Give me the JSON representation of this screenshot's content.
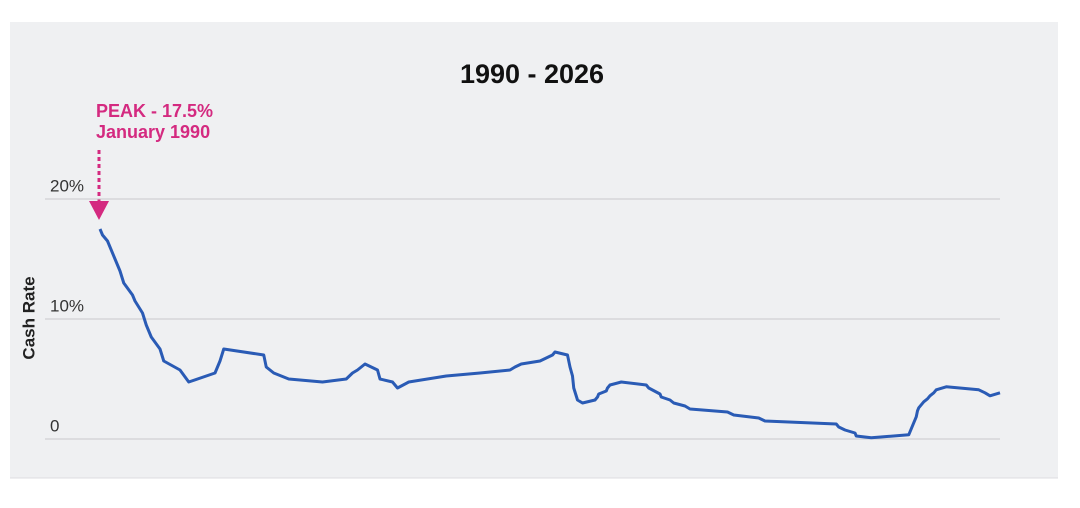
{
  "chart_data": {
    "type": "line",
    "title": "1990 - 2026",
    "y_label": "Cash Rate",
    "annotations": [
      "PEAK - 17.5%",
      "January 1990"
    ],
    "color": "#2a5bb5",
    "annotation_color": "#d42a80",
    "grid": true,
    "xlim": [
      1990,
      2026
    ],
    "ylim": [
      0,
      28
    ],
    "yticks": [
      0,
      {
        "value": 10,
        "label": "10%"
      },
      {
        "value": 20,
        "label": "20%"
      }
    ],
    "x": [
      1990.0,
      1990.1,
      1990.3,
      1990.6,
      1990.8,
      1990.95,
      1991.3,
      1991.4,
      1991.7,
      1991.85,
      1992.05,
      1992.4,
      1992.55,
      1993.2,
      1993.55,
      1994.6,
      1994.8,
      1994.95,
      1996.55,
      1996.65,
      1996.95,
      1997.55,
      1998.9,
      1999.85,
      2000.1,
      2000.3,
      2000.6,
      2001.1,
      2001.2,
      2001.7,
      2001.9,
      2002.35,
      2003.85,
      2005.2,
      2006.4,
      2006.6,
      2006.85,
      2007.6,
      2007.85,
      2008.1,
      2008.2,
      2008.7,
      2008.8,
      2008.9,
      2008.95,
      2009.1,
      2009.3,
      2009.8,
      2009.9,
      2009.95,
      2010.25,
      2010.3,
      2010.4,
      2010.85,
      2011.85,
      2011.95,
      2012.4,
      2012.45,
      2012.8,
      2012.95,
      2013.4,
      2013.6,
      2015.1,
      2015.35,
      2016.35,
      2016.6,
      2019.45,
      2019.55,
      2019.8,
      2020.2,
      2020.25,
      2020.85,
      2022.35,
      2022.45,
      2022.55,
      2022.65,
      2022.7,
      2022.75,
      2022.85,
      2022.95,
      2023.1,
      2023.2,
      2023.35,
      2023.45,
      2023.85,
      2025.15,
      2025.4,
      2025.6,
      2026.0
    ],
    "values": [
      17.5,
      17.0,
      16.5,
      15.0,
      14.0,
      13.0,
      12.0,
      11.5,
      10.5,
      9.5,
      8.5,
      7.5,
      6.5,
      5.75,
      4.75,
      5.5,
      6.5,
      7.5,
      7.0,
      6.0,
      5.5,
      5.0,
      4.75,
      5.0,
      5.5,
      5.75,
      6.25,
      5.75,
      5.0,
      4.75,
      4.25,
      4.75,
      5.25,
      5.5,
      5.75,
      6.0,
      6.25,
      6.5,
      6.75,
      7.0,
      7.25,
      7.0,
      6.0,
      5.25,
      4.25,
      3.25,
      3.0,
      3.25,
      3.5,
      3.75,
      4.0,
      4.25,
      4.5,
      4.75,
      4.5,
      4.25,
      3.75,
      3.5,
      3.25,
      3.0,
      2.75,
      2.5,
      2.25,
      2.0,
      1.75,
      1.5,
      1.25,
      1.0,
      0.75,
      0.5,
      0.25,
      0.1,
      0.35,
      0.85,
      1.35,
      1.85,
      2.35,
      2.6,
      2.85,
      3.1,
      3.35,
      3.6,
      3.85,
      4.1,
      4.35,
      4.1,
      3.85,
      3.6,
      3.85
    ]
  }
}
